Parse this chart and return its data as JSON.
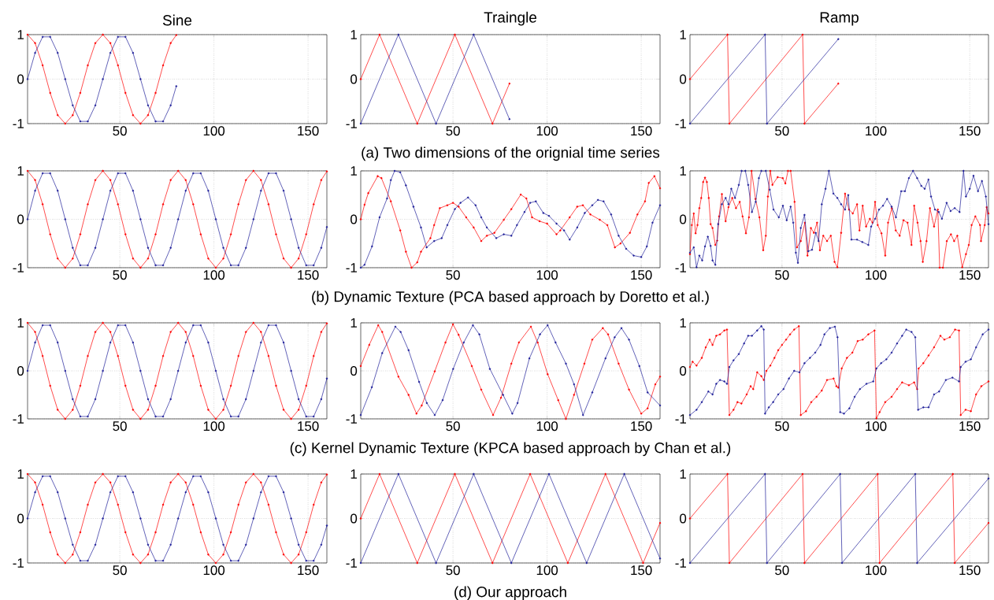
{
  "chart_data": [
    {
      "type": "line",
      "title": "Sine",
      "x": [
        1,
        5,
        9,
        13,
        17,
        21,
        25,
        29,
        33,
        37,
        41,
        45,
        49,
        53,
        57,
        61,
        65,
        69,
        73,
        77,
        80
      ],
      "xlim": [
        1,
        160
      ],
      "xticks": [
        50,
        100,
        150
      ],
      "ylim": [
        -1,
        1
      ],
      "yticks": [
        -1,
        0,
        1
      ],
      "grid": true,
      "marker": "circle",
      "series": [
        {
          "color": "#ff0000",
          "values": [
            1,
            0.81,
            0.31,
            -0.31,
            -0.81,
            -1,
            -0.81,
            -0.31,
            0.31,
            0.81,
            1,
            0.81,
            0.31,
            -0.31,
            -0.81,
            -1,
            -0.81,
            -0.31,
            0.31,
            0.81,
            0.99
          ]
        },
        {
          "color": "#1f1f99",
          "values": [
            0,
            0.59,
            0.95,
            0.95,
            0.59,
            0,
            -0.59,
            -0.95,
            -0.95,
            -0.59,
            0,
            0.59,
            0.95,
            0.95,
            0.59,
            0,
            -0.59,
            -0.95,
            -0.95,
            -0.59,
            -0.16
          ]
        }
      ]
    },
    {
      "type": "line",
      "title": "Traingle",
      "xlim": [
        1,
        160
      ],
      "xticks": [
        50,
        100,
        150
      ],
      "ylim": [
        -1,
        1
      ],
      "yticks": [
        -1,
        0,
        1
      ],
      "grid": true,
      "marker": "circle",
      "annotations": [
        "(a) Two dimensions of the orignial time series"
      ],
      "series": [
        {
          "color": "#ff0000",
          "x": [
            1,
            11,
            31,
            51,
            71,
            80
          ],
          "values": [
            0,
            1,
            -1,
            1,
            -1,
            -0.1
          ]
        },
        {
          "color": "#1f1f99",
          "x": [
            1,
            21,
            41,
            61,
            80
          ],
          "values": [
            -1,
            1,
            -1,
            1,
            -0.9
          ]
        }
      ]
    },
    {
      "type": "line",
      "title": "Ramp",
      "xlim": [
        1,
        160
      ],
      "xticks": [
        50,
        100,
        150
      ],
      "ylim": [
        -1,
        1
      ],
      "yticks": [
        -1,
        0,
        1
      ],
      "grid": true,
      "marker": "circle",
      "series": [
        {
          "color": "#ff0000",
          "x": [
            1,
            21,
            22,
            61,
            62,
            80
          ],
          "values": [
            0,
            1,
            -1,
            1,
            -1,
            -0.1
          ]
        },
        {
          "color": "#1f1f99",
          "x": [
            1,
            41,
            42,
            80
          ],
          "values": [
            -1,
            1,
            -1,
            0.9
          ]
        }
      ]
    },
    {
      "type": "line",
      "x": [
        1,
        5,
        9,
        13,
        17,
        21,
        25,
        29,
        33,
        37,
        41,
        45,
        49,
        53,
        57,
        61,
        65,
        69,
        73,
        77,
        81,
        85,
        89,
        93,
        97,
        101,
        105,
        109,
        113,
        117,
        121,
        125,
        129,
        133,
        137,
        141,
        145,
        149,
        153,
        157,
        160
      ],
      "xlim": [
        1,
        160
      ],
      "xticks": [
        50,
        100,
        150
      ],
      "ylim": [
        -1,
        1
      ],
      "yticks": [
        -1,
        0,
        1
      ],
      "grid": true,
      "marker": "circle",
      "series": [
        {
          "color": "#ff0000",
          "values": [
            1,
            0.81,
            0.31,
            -0.31,
            -0.81,
            -1,
            -0.81,
            -0.31,
            0.31,
            0.81,
            1,
            0.81,
            0.31,
            -0.31,
            -0.81,
            -1,
            -0.81,
            -0.31,
            0.31,
            0.81,
            1,
            0.81,
            0.31,
            -0.31,
            -0.81,
            -1,
            -0.81,
            -0.31,
            0.31,
            0.81,
            1,
            0.81,
            0.31,
            -0.31,
            -0.81,
            -1,
            -0.81,
            -0.31,
            0.31,
            0.81,
            0.99
          ]
        },
        {
          "color": "#1f1f99",
          "values": [
            0,
            0.59,
            0.95,
            0.95,
            0.59,
            0,
            -0.59,
            -0.95,
            -0.95,
            -0.59,
            0,
            0.59,
            0.95,
            0.95,
            0.59,
            0,
            -0.59,
            -0.95,
            -0.95,
            -0.59,
            0,
            0.59,
            0.95,
            0.95,
            0.59,
            0,
            -0.59,
            -0.95,
            -0.95,
            -0.59,
            0,
            0.59,
            0.95,
            0.95,
            0.59,
            0,
            -0.59,
            -0.95,
            -0.95,
            -0.59,
            -0.16
          ]
        }
      ]
    },
    {
      "type": "line",
      "xlim": [
        1,
        160
      ],
      "xticks": [
        50,
        100,
        150
      ],
      "ylim": [
        -1,
        1
      ],
      "yticks": [
        -1,
        0,
        1
      ],
      "grid": true,
      "marker": "circle",
      "annotations": [
        "(b) Dynamic Texture (PCA based approach by Doretto et al.)"
      ],
      "series": [
        {
          "color": "#ff0000",
          "x": [
            1,
            3,
            5,
            10,
            12,
            17,
            22,
            25,
            28,
            31,
            33,
            38,
            40,
            43,
            47,
            50,
            53,
            57,
            61,
            65,
            68,
            72,
            77,
            81,
            86,
            89,
            92,
            96,
            100,
            105,
            107,
            112,
            116,
            119,
            123,
            128,
            132,
            136,
            139,
            144,
            148,
            152,
            154,
            157,
            160
          ],
          "values": [
            0,
            0.3,
            0.54,
            0.89,
            0.85,
            0.37,
            -0.23,
            -0.67,
            -1,
            -0.89,
            -0.67,
            -0.39,
            -0.12,
            0.23,
            0.29,
            0.34,
            0.26,
            0.04,
            -0.17,
            -0.45,
            -0.34,
            -0.28,
            -0.01,
            0.21,
            0.51,
            0.43,
            0.04,
            -0.04,
            -0.09,
            -0.31,
            -0.23,
            0.04,
            0.26,
            0.29,
            0.1,
            -0.01,
            -0.12,
            -0.58,
            -0.5,
            -0.28,
            0.1,
            0.37,
            0.75,
            0.89,
            0.64
          ]
        },
        {
          "color": "#1f1f99",
          "x": [
            1,
            3,
            7,
            11,
            15,
            17,
            19,
            22,
            25,
            29,
            33,
            36,
            40,
            44,
            47,
            51,
            54,
            58,
            62,
            65,
            68,
            73,
            77,
            81,
            84,
            88,
            91,
            94,
            98,
            101,
            105,
            109,
            112,
            116,
            120,
            124,
            127,
            130,
            134,
            138,
            142,
            146,
            150,
            153,
            156,
            160
          ],
          "values": [
            -1,
            -0.94,
            -0.56,
            0.04,
            0.43,
            0.81,
            1,
            0.97,
            0.7,
            0.26,
            -0.17,
            -0.58,
            -0.45,
            -0.39,
            -0.12,
            0.21,
            0.34,
            0.45,
            0.29,
            0.04,
            -0.17,
            -0.39,
            -0.31,
            -0.34,
            -0.12,
            0.15,
            0.34,
            0.37,
            0.13,
            0.07,
            -0.09,
            -0.23,
            -0.42,
            -0.17,
            0.13,
            0.29,
            0.4,
            0.37,
            0.1,
            -0.34,
            -0.61,
            -0.75,
            -0.78,
            -0.56,
            -0.07,
            0.29
          ]
        }
      ]
    },
    {
      "type": "line",
      "xlim": [
        1,
        160
      ],
      "xticks": [
        50,
        100,
        150
      ],
      "ylim": [
        -1,
        1
      ],
      "yticks": [
        -1,
        0,
        1
      ],
      "grid": true,
      "marker": "circle",
      "series": [
        {
          "color": "#ff0000",
          "x": [
            1,
            2,
            3,
            4,
            5,
            6,
            7,
            8,
            9,
            10,
            11,
            12,
            13,
            14.5,
            15.5,
            16.5,
            18,
            20,
            21.5,
            23.5,
            25.5,
            27.5,
            29,
            30.8,
            32.4,
            33.8,
            35.9,
            38,
            40,
            41.4,
            42.5,
            43.8,
            44.9,
            47.7,
            50.4,
            51.8,
            53.2,
            54.6,
            56.7,
            58,
            60,
            62.2,
            63.6,
            65.4,
            67,
            68.7,
            70.2,
            72,
            74,
            76,
            78,
            79.5,
            81.5,
            83.6,
            85.7,
            87.7,
            90,
            91.3,
            93,
            94.8,
            96.8,
            98.2,
            99.6,
            101,
            103,
            105,
            106.5,
            108.5,
            110.6,
            112.7,
            114.7,
            116.9,
            119,
            120.4,
            122.2,
            123.8,
            125,
            127,
            128.8,
            131,
            133,
            134,
            135.7,
            137.8,
            140,
            141.7,
            143.4,
            146,
            148,
            149.5,
            151,
            153,
            155.5,
            156,
            158,
            159,
            160
          ],
          "values": [
            -0.72,
            -0.12,
            0.12,
            -0.29,
            -0.12,
            0.23,
            0.44,
            0.77,
            0.86,
            0.77,
            0.44,
            -0.1,
            -0.18,
            -0.53,
            -0.44,
            0.06,
            0.52,
            -0.04,
            0.25,
            0.44,
            0.23,
            0.36,
            0.06,
            -0.29,
            0.04,
            1,
            0.42,
            0.04,
            -0.64,
            -0.34,
            0.47,
            1,
            0.71,
            0.87,
            0.85,
            0.74,
            1,
            1,
            0.36,
            -0.58,
            -0.45,
            -0.07,
            -0.75,
            -0.18,
            -0.28,
            -0.07,
            -0.64,
            -0.34,
            -0.45,
            -0.34,
            -0.88,
            -0.99,
            -0.28,
            0.53,
            0.2,
            0.12,
            0.31,
            -0.23,
            0.28,
            -0.15,
            0.01,
            -0.07,
            0.36,
            -0.12,
            -0.29,
            -0.75,
            -0.07,
            0.23,
            -0.23,
            -0.34,
            -0.02,
            -0.07,
            -0.53,
            0.28,
            -0.07,
            -0.45,
            -0.88,
            -0.45,
            0.23,
            -0.15,
            0.2,
            -1,
            -1,
            -0.45,
            -0.31,
            -0.45,
            -0.34,
            -0.99,
            -0.72,
            -0.53,
            -0.12,
            0.06,
            -0.12,
            -0.45,
            -0.12,
            0.25,
            0.12
          ]
        },
        {
          "color": "#1f1f99",
          "x": [
            1,
            3,
            4.5,
            6,
            7.5,
            9,
            10.5,
            12,
            13,
            14.5,
            16,
            18,
            20,
            21.5,
            23,
            25,
            27,
            28.5,
            30.5,
            32,
            34,
            36,
            37.7,
            39,
            41.4,
            43.5,
            45.5,
            48.3,
            50.5,
            52.5,
            54.6,
            56,
            57.4,
            58.5,
            60,
            62,
            64,
            66,
            68,
            69.5,
            71.2,
            73.2,
            75,
            77.4,
            79.5,
            81.5,
            83.6,
            85.3,
            87,
            90,
            92.8,
            96,
            97.5,
            99.6,
            101.7,
            103.8,
            106,
            108.4,
            110.7,
            113.5,
            115.5,
            117.6,
            119.8,
            122,
            124.2,
            126,
            128,
            129.4,
            131.5,
            133.5,
            135.2,
            137.7,
            139.8,
            142,
            144.6,
            146.7,
            148,
            150,
            152,
            154.4,
            156.5,
            158.6,
            160
          ],
          "values": [
            -0.69,
            -0.58,
            -0.99,
            -0.75,
            -0.85,
            -0.56,
            -0.36,
            -0.55,
            -0.85,
            -0.94,
            -0.1,
            0.31,
            0.44,
            0.31,
            0.63,
            0.44,
            0.71,
            1,
            1,
            0.71,
            0.15,
            0.36,
            0.85,
            1,
            1,
            0.61,
            0.2,
            0.04,
            0.28,
            -0.02,
            0.26,
            -0.07,
            -0.69,
            -0.9,
            -0.18,
            0.09,
            -0.66,
            -0.63,
            -0.28,
            -0.45,
            0.31,
            0.63,
            1,
            0.53,
            0.44,
            0.31,
            0.2,
            0.5,
            -0.42,
            -0.42,
            -0.47,
            -0.53,
            -0.15,
            0.01,
            0.2,
            0.28,
            0.42,
            0.26,
            0.04,
            0.58,
            0.58,
            0.85,
            1,
            0.85,
            0.69,
            0.63,
            0.82,
            0.47,
            0.2,
            0.15,
            0.01,
            0.34,
            0.17,
            0.23,
            0.15,
            1,
            0.47,
            0.63,
            0.9,
            0.58,
            0.79,
            0.47,
            -0.1
          ]
        }
      ]
    },
    {
      "type": "line",
      "x": [
        1,
        5,
        9,
        13,
        17,
        21,
        25,
        29,
        33,
        37,
        41,
        45,
        49,
        53,
        57,
        61,
        65,
        69,
        73,
        77,
        81,
        85,
        89,
        93,
        97,
        101,
        105,
        109,
        113,
        117,
        121,
        125,
        129,
        133,
        137,
        141,
        145,
        149,
        153,
        157,
        160
      ],
      "xlim": [
        1,
        160
      ],
      "xticks": [
        50,
        100,
        150
      ],
      "ylim": [
        -1,
        1
      ],
      "yticks": [
        -1,
        0,
        1
      ],
      "grid": true,
      "marker": "circle",
      "series": [
        {
          "color": "#ff0000",
          "values": [
            1,
            0.81,
            0.31,
            -0.31,
            -0.81,
            -1,
            -0.81,
            -0.31,
            0.31,
            0.81,
            1,
            0.81,
            0.31,
            -0.31,
            -0.81,
            -1,
            -0.81,
            -0.31,
            0.31,
            0.81,
            1,
            0.81,
            0.31,
            -0.31,
            -0.81,
            -1,
            -0.81,
            -0.31,
            0.31,
            0.81,
            1,
            0.81,
            0.31,
            -0.31,
            -0.81,
            -1,
            -0.81,
            -0.31,
            0.31,
            0.81,
            0.99
          ]
        },
        {
          "color": "#1f1f99",
          "values": [
            0,
            0.59,
            0.95,
            0.95,
            0.59,
            0,
            -0.59,
            -0.95,
            -0.95,
            -0.59,
            0,
            0.59,
            0.95,
            0.95,
            0.59,
            0,
            -0.59,
            -0.95,
            -0.95,
            -0.59,
            0,
            0.59,
            0.95,
            0.95,
            0.59,
            0,
            -0.59,
            -0.95,
            -0.95,
            -0.59,
            0,
            0.59,
            0.95,
            0.95,
            0.59,
            0,
            -0.59,
            -0.95,
            -0.95,
            -0.59,
            -0.16
          ]
        }
      ]
    },
    {
      "type": "line",
      "xlim": [
        1,
        160
      ],
      "xticks": [
        50,
        100,
        150
      ],
      "ylim": [
        -1,
        1
      ],
      "yticks": [
        -1,
        0,
        1
      ],
      "grid": true,
      "marker": "circle",
      "annotations": [
        "(c) Kernel Dynamic Texture (KPCA based approach by Chan et al.)"
      ],
      "series": [
        {
          "color": "#ff0000",
          "x": [
            1,
            5.5,
            10.3,
            12.4,
            21,
            26.4,
            30.6,
            33.4,
            40.3,
            46,
            50,
            53,
            60,
            65,
            71.3,
            75.5,
            81,
            85,
            91.4,
            95,
            100.3,
            105.9,
            110,
            114.3,
            119.8,
            124,
            129.6,
            132.4,
            138,
            143.5,
            150,
            153.4,
            157.5,
            160
          ],
          "values": [
            0.1,
            0.54,
            0.95,
            0.81,
            -0.12,
            -0.5,
            -0.89,
            -0.72,
            -0.01,
            0.59,
            0.97,
            0.75,
            0.1,
            -0.39,
            -0.92,
            -0.56,
            0.15,
            0.59,
            0.92,
            0.59,
            -0.07,
            -0.61,
            -1,
            -0.5,
            0.15,
            0.65,
            0.89,
            0.76,
            0.15,
            -0.39,
            -0.89,
            -0.78,
            -0.28,
            -0.12
          ]
        },
        {
          "color": "#1f1f99",
          "x": [
            1,
            6.9,
            12.4,
            19.4,
            22.2,
            26.4,
            32,
            36.1,
            40.3,
            44.5,
            50.1,
            55.7,
            60.6,
            64,
            69.6,
            76.6,
            81.5,
            84.3,
            90.6,
            96.2,
            100.3,
            104.5,
            110,
            114.3,
            119.1,
            124,
            131,
            135.9,
            139.5,
            143.5,
            149,
            153.4,
            160
          ],
          "values": [
            -0.92,
            -0.34,
            0.37,
            0.92,
            0.81,
            0.43,
            -0.23,
            -0.67,
            -0.92,
            -0.61,
            0.04,
            0.59,
            0.95,
            0.76,
            0.04,
            -0.5,
            -0.89,
            -0.67,
            0.26,
            0.76,
            0.95,
            0.59,
            0.15,
            -0.28,
            -0.92,
            -0.45,
            0.26,
            0.7,
            0.89,
            0.65,
            0.1,
            -0.45,
            -0.72
          ]
        }
      ]
    },
    {
      "type": "line",
      "xlim": [
        1,
        160
      ],
      "xticks": [
        50,
        100,
        150
      ],
      "ylim": [
        -1,
        1
      ],
      "yticks": [
        -1,
        0,
        1
      ],
      "grid": true,
      "marker": "circle",
      "series": [
        {
          "color": "#ff0000",
          "x": [
            1,
            2.4,
            4.5,
            7.3,
            9.4,
            11.5,
            13,
            15,
            17,
            19.3,
            20.7,
            22,
            24.2,
            26.3,
            28.4,
            31.2,
            33.3,
            34.7,
            36.8,
            39,
            40.3,
            41.7,
            43.8,
            46,
            48,
            50,
            52.2,
            54.3,
            56.5,
            59,
            60,
            62.8,
            65.6,
            68.4,
            71.2,
            74,
            77.5,
            79,
            80,
            81.8,
            84.6,
            87.5,
            90.3,
            93,
            96,
            99.3,
            100.3,
            102,
            105,
            108.4,
            111.3,
            114,
            117.6,
            120.4,
            122,
            122.8,
            125.3,
            128.1,
            131,
            134.4,
            136.5,
            139.4,
            142.2,
            144.3,
            145.2,
            147.8,
            150.6,
            153.4,
            156.2,
            160
          ],
          "values": [
            0.08,
            0.19,
            0.11,
            0.27,
            0.49,
            0.65,
            0.54,
            0.73,
            0.76,
            0.84,
            0.86,
            -0.92,
            -0.81,
            -0.65,
            -0.68,
            -0.49,
            -0.32,
            -0.38,
            -0.03,
            -0.11,
            -0.19,
            0,
            0.11,
            0.27,
            0.43,
            0.54,
            0.65,
            0.76,
            0.86,
            0.93,
            -0.92,
            -0.84,
            -0.65,
            -0.54,
            -0.41,
            -0.19,
            -0.16,
            -0.32,
            -0.35,
            0.05,
            0.27,
            0.38,
            0.62,
            0.65,
            0.76,
            0.84,
            -0.99,
            -0.86,
            -0.65,
            -0.54,
            -0.38,
            -0.24,
            -0.3,
            -0.24,
            -0.38,
            0.05,
            0.16,
            0.32,
            0.49,
            0.73,
            0.65,
            0.7,
            0.86,
            0.84,
            -0.92,
            -0.81,
            -0.84,
            -0.49,
            -0.32,
            -0.22
          ]
        },
        {
          "color": "#1f1f99",
          "x": [
            1,
            4.5,
            7.3,
            10.8,
            13,
            15,
            17,
            19.3,
            20.7,
            22,
            24.2,
            27,
            29.8,
            32,
            34,
            36.8,
            39,
            40.3,
            41,
            43,
            45.3,
            48,
            50.8,
            53.7,
            56.5,
            59.3,
            62,
            64.9,
            67.7,
            70.5,
            72.6,
            75.5,
            78.2,
            79.6,
            81,
            83,
            85.9,
            88.7,
            91.5,
            95,
            98.6,
            100.3,
            102.8,
            105.6,
            108.4,
            111.3,
            114,
            116.2,
            119,
            121,
            122.5,
            125.3,
            128.1,
            131,
            133.7,
            137.3,
            140.8,
            144.3,
            145.2,
            147.8,
            150.6,
            153.4,
            156.9,
            160
          ],
          "values": [
            -0.92,
            -0.81,
            -0.65,
            -0.43,
            -0.49,
            -0.27,
            -0.19,
            -0.22,
            -0.27,
            0.08,
            0.22,
            0.35,
            0.57,
            0.73,
            0.73,
            0.84,
            0.93,
            0.86,
            -0.89,
            -0.76,
            -0.65,
            -0.49,
            -0.38,
            -0.16,
            0,
            -0.03,
            0.16,
            0.27,
            0.38,
            0.54,
            0.76,
            0.89,
            0.92,
            0.7,
            -0.86,
            -0.89,
            -0.78,
            -0.54,
            -0.38,
            -0.27,
            -0.22,
            0.05,
            0.16,
            0.24,
            0.38,
            0.57,
            0.73,
            0.86,
            0.81,
            0.7,
            -0.81,
            -0.76,
            -0.76,
            -0.49,
            -0.43,
            -0.19,
            -0.14,
            -0.22,
            0.08,
            0.19,
            0.24,
            0.49,
            0.76,
            0.86
          ]
        }
      ]
    },
    {
      "type": "line",
      "x": [
        1,
        5,
        9,
        13,
        17,
        21,
        25,
        29,
        33,
        37,
        41,
        45,
        49,
        53,
        57,
        61,
        65,
        69,
        73,
        77,
        81,
        85,
        89,
        93,
        97,
        101,
        105,
        109,
        113,
        117,
        121,
        125,
        129,
        133,
        137,
        141,
        145,
        149,
        153,
        157,
        160
      ],
      "xlim": [
        1,
        160
      ],
      "xticks": [
        50,
        100,
        150
      ],
      "ylim": [
        -1,
        1
      ],
      "yticks": [
        -1,
        0,
        1
      ],
      "grid": true,
      "marker": "circle",
      "series": [
        {
          "color": "#ff0000",
          "values": [
            1,
            0.81,
            0.31,
            -0.31,
            -0.81,
            -1,
            -0.81,
            -0.31,
            0.31,
            0.81,
            1,
            0.81,
            0.31,
            -0.31,
            -0.81,
            -1,
            -0.81,
            -0.31,
            0.31,
            0.81,
            1,
            0.81,
            0.31,
            -0.31,
            -0.81,
            -1,
            -0.81,
            -0.31,
            0.31,
            0.81,
            1,
            0.81,
            0.31,
            -0.31,
            -0.81,
            -1,
            -0.81,
            -0.31,
            0.31,
            0.81,
            0.99
          ]
        },
        {
          "color": "#1f1f99",
          "values": [
            0,
            0.59,
            0.95,
            0.95,
            0.59,
            0,
            -0.59,
            -0.95,
            -0.95,
            -0.59,
            0,
            0.59,
            0.95,
            0.95,
            0.59,
            0,
            -0.59,
            -0.95,
            -0.95,
            -0.59,
            0,
            0.59,
            0.95,
            0.95,
            0.59,
            0,
            -0.59,
            -0.95,
            -0.95,
            -0.59,
            0,
            0.59,
            0.95,
            0.95,
            0.59,
            0,
            -0.59,
            -0.95,
            -0.95,
            -0.59,
            -0.16
          ]
        }
      ]
    },
    {
      "type": "line",
      "xlim": [
        1,
        160
      ],
      "xticks": [
        50,
        100,
        150
      ],
      "ylim": [
        -1,
        1
      ],
      "yticks": [
        -1,
        0,
        1
      ],
      "grid": true,
      "marker": "circle",
      "annotations": [
        "(d) Our approach"
      ],
      "series": [
        {
          "color": "#ff0000",
          "x": [
            1,
            11,
            31,
            51,
            71,
            91,
            111,
            131,
            151,
            160
          ],
          "values": [
            0,
            1,
            -1,
            1,
            -1,
            1,
            -1,
            1,
            -1,
            -0.1
          ]
        },
        {
          "color": "#1f1f99",
          "x": [
            1,
            21,
            41,
            61,
            81,
            101,
            121,
            141,
            160
          ],
          "values": [
            -1,
            1,
            -1,
            1,
            -1,
            1,
            -1,
            1,
            -0.9
          ]
        }
      ]
    },
    {
      "type": "line",
      "xlim": [
        1,
        160
      ],
      "xticks": [
        50,
        100,
        150
      ],
      "ylim": [
        -1,
        1
      ],
      "yticks": [
        -1,
        0,
        1
      ],
      "grid": true,
      "marker": "circle",
      "series": [
        {
          "color": "#ff0000",
          "x": [
            1,
            21,
            22,
            61,
            62,
            101,
            102,
            141,
            142,
            160
          ],
          "values": [
            0,
            1,
            -1,
            1,
            -1,
            1,
            -1,
            1,
            -1,
            -0.1
          ]
        },
        {
          "color": "#1f1f99",
          "x": [
            1,
            41,
            42,
            81,
            82,
            121,
            122,
            160
          ],
          "values": [
            -1,
            1,
            -1,
            1,
            -1,
            1,
            -1,
            0.9
          ]
        }
      ]
    }
  ]
}
